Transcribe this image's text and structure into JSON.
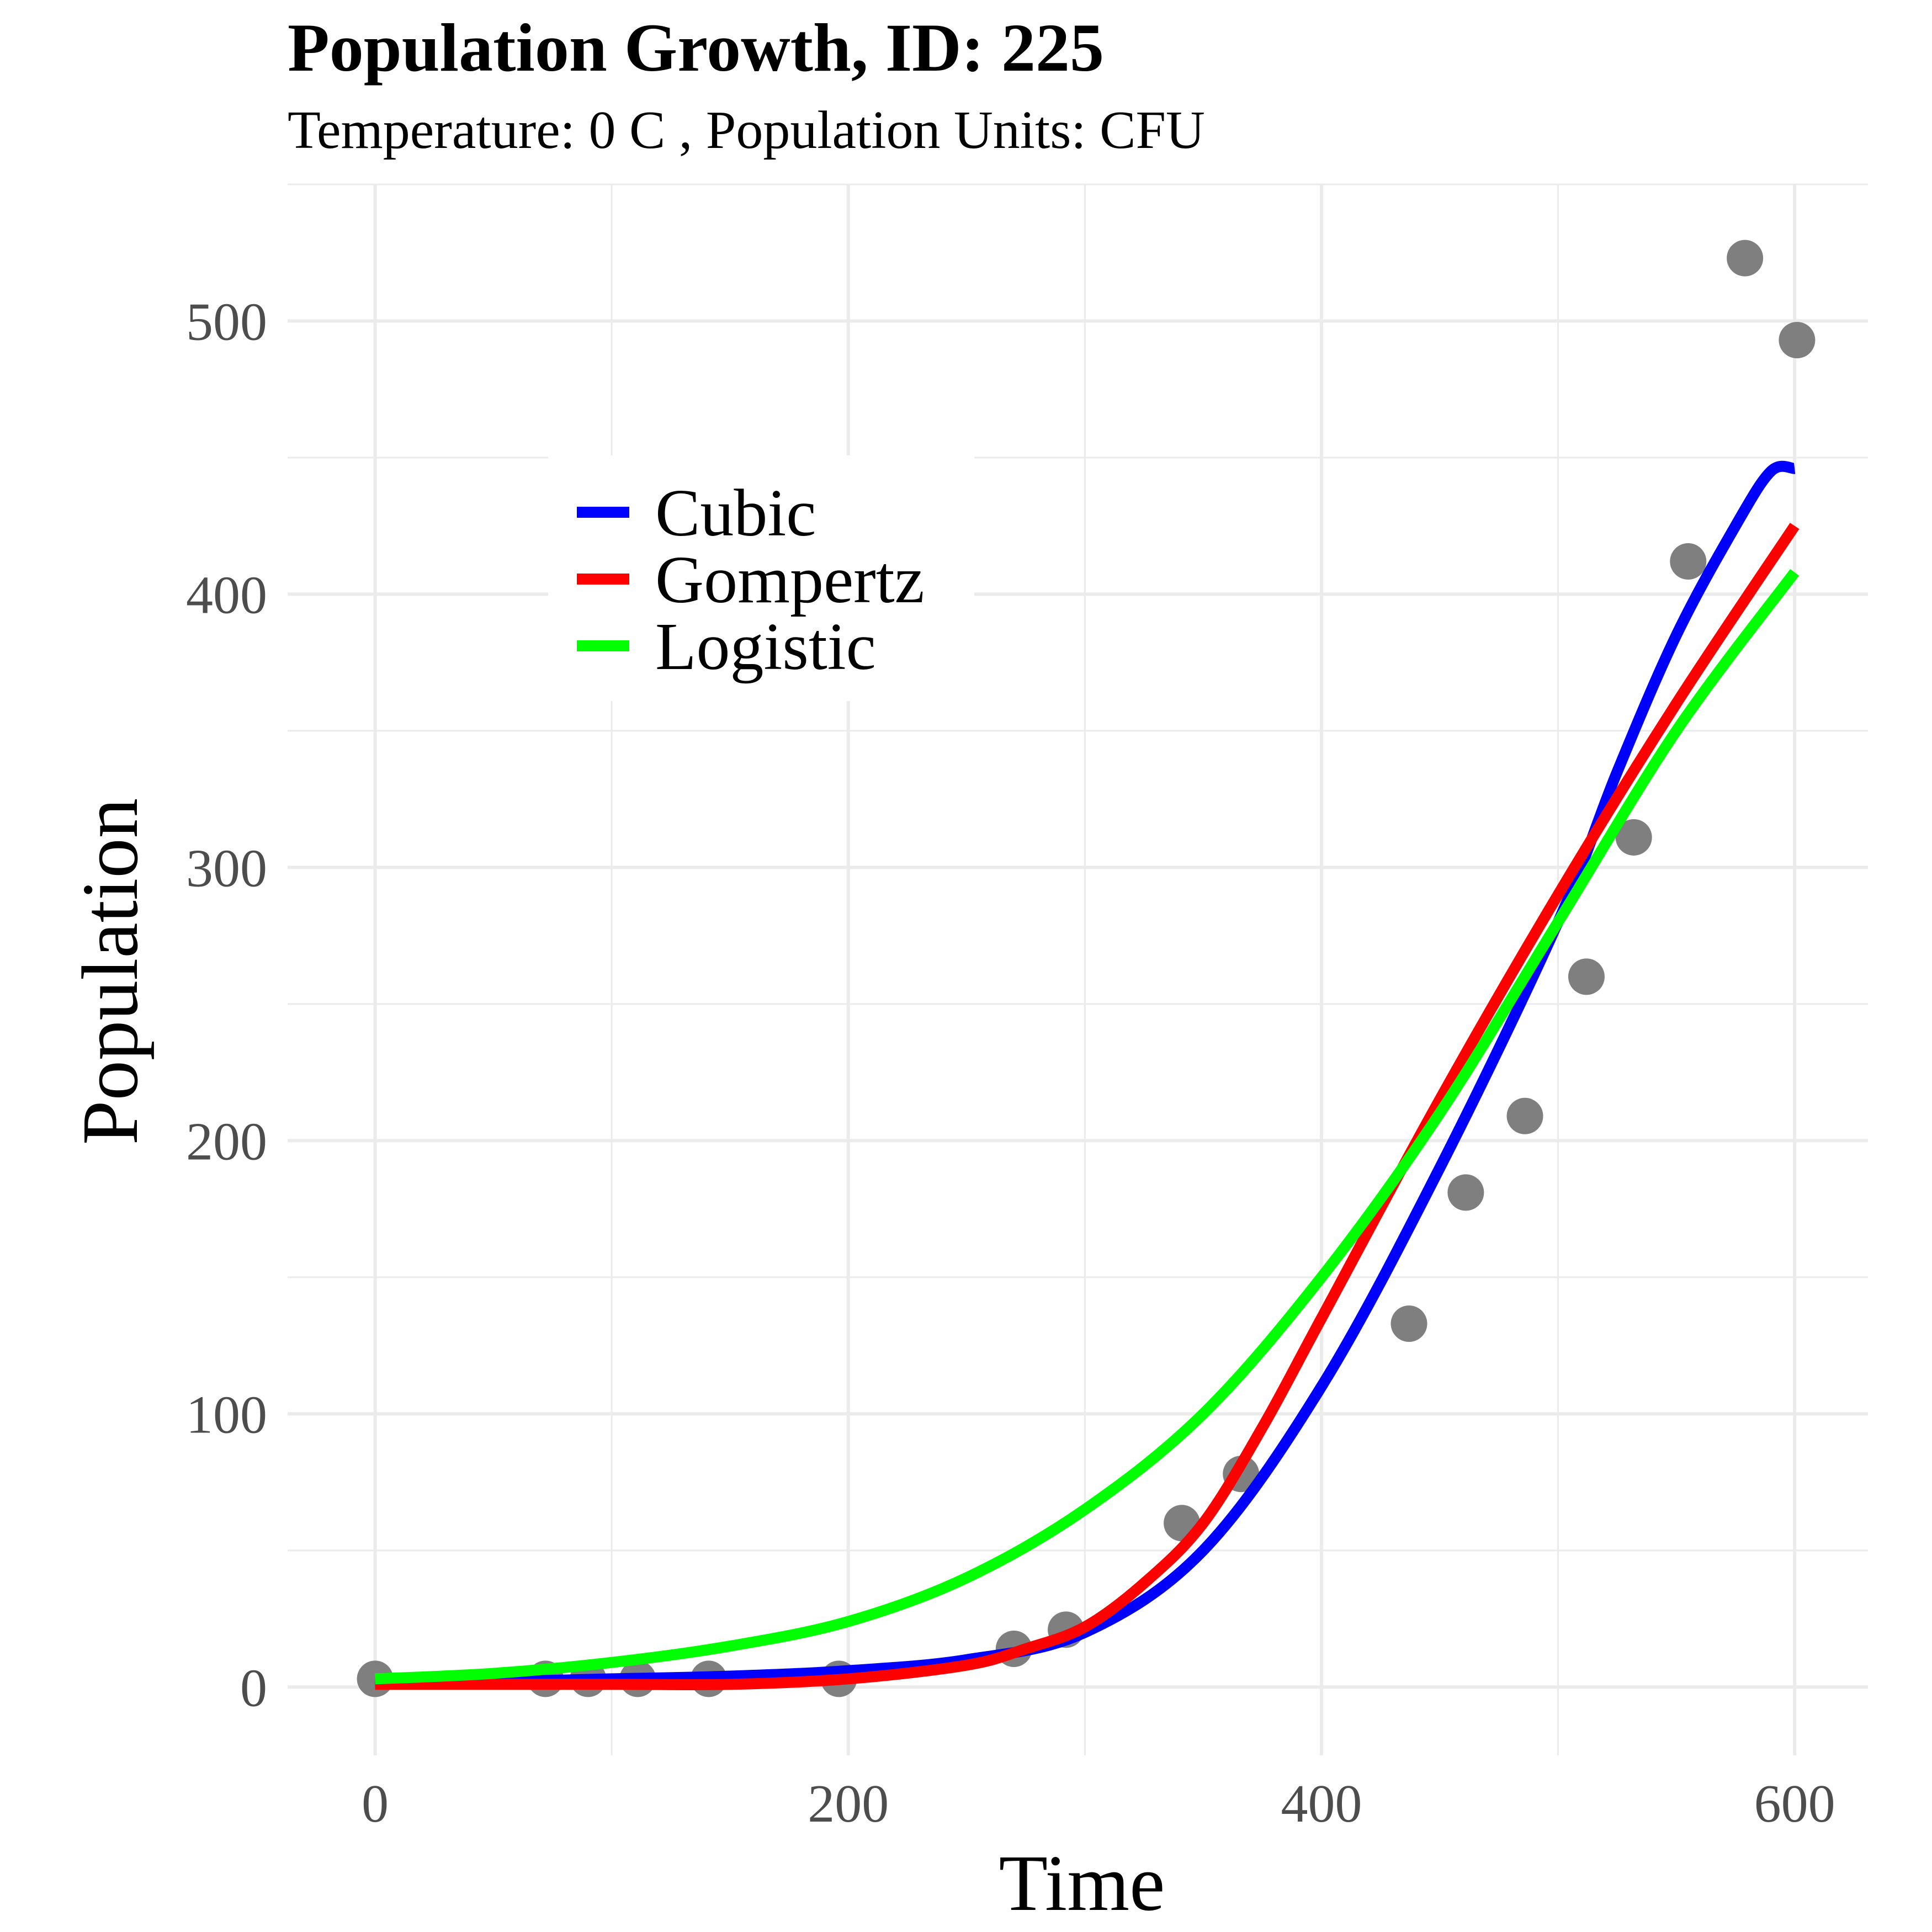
{
  "title": "Population Growth, ID:  225",
  "subtitle": "Temperature:  0 C , Population Units:  CFU",
  "chart_data": {
    "type": "scatter",
    "title": "Population Growth, ID:  225",
    "subtitle": "Temperature:  0 C , Population Units:  CFU",
    "xlabel": "Time",
    "ylabel": "Population",
    "xlim": [
      -37,
      631
    ],
    "ylim": [
      -25,
      550
    ],
    "x_ticks": [
      0,
      200,
      400,
      600
    ],
    "y_ticks": [
      0,
      100,
      200,
      300,
      400,
      500
    ],
    "grid": true,
    "legend_position": "top-left",
    "points": {
      "color": "#7f7f7f",
      "x": [
        0,
        72,
        90,
        111,
        141,
        196,
        270,
        292,
        341,
        366,
        437,
        461,
        486,
        512,
        532,
        555,
        579,
        601
      ],
      "y": [
        3,
        3,
        3,
        3,
        3,
        3,
        14,
        21,
        60,
        78,
        133,
        181,
        209,
        260,
        311,
        412,
        523,
        493
      ]
    },
    "series": [
      {
        "name": "Cubic",
        "color": "#0000ff",
        "x": [
          0,
          50,
          100,
          150,
          200,
          250,
          300,
          350,
          400,
          450,
          500,
          525,
          550,
          575,
          590,
          600
        ],
        "y": [
          2,
          2,
          3,
          4,
          6,
          10,
          20,
          50,
          110,
          190,
          280,
          335,
          385,
          425,
          445,
          446
        ]
      },
      {
        "name": "Gompertz",
        "color": "#ff0000",
        "x": [
          0,
          100,
          150,
          200,
          250,
          275,
          300,
          325,
          350,
          375,
          400,
          450,
          500,
          550,
          600
        ],
        "y": [
          1,
          1,
          1,
          3,
          8,
          14,
          22,
          38,
          60,
          95,
          135,
          215,
          290,
          360,
          425
        ]
      },
      {
        "name": "Logistic",
        "color": "#00ff00",
        "x": [
          0,
          50,
          100,
          150,
          200,
          250,
          300,
          350,
          400,
          450,
          500,
          550,
          600
        ],
        "y": [
          3,
          5,
          9,
          15,
          24,
          40,
          65,
          100,
          150,
          210,
          280,
          350,
          408
        ]
      }
    ]
  }
}
